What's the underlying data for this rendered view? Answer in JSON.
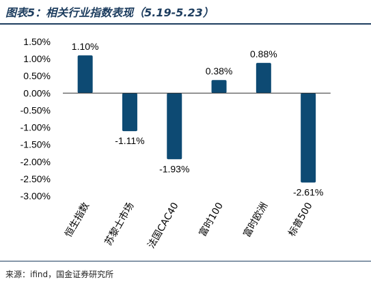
{
  "header": {
    "title": "图表5：相关行业指数表现（5.19-5.23）"
  },
  "footer": {
    "source": "来源：ifind，国金证券研究所"
  },
  "colors": {
    "bar": "#0d4a73",
    "rule": "#1c3c5e"
  },
  "chart_data": {
    "type": "bar",
    "categories": [
      "恒生指数",
      "苏黎士市场",
      "法国CAC40",
      "富时100",
      "富时欧洲",
      "标普500"
    ],
    "values": [
      1.1,
      -1.11,
      -1.93,
      0.38,
      0.88,
      -2.61
    ],
    "value_labels": [
      "1.10%",
      "-1.11%",
      "-1.93%",
      "0.38%",
      "0.88%",
      "-2.61%"
    ],
    "ylim": [
      -3.0,
      1.5
    ],
    "yticks": [
      1.5,
      1.0,
      0.5,
      0.0,
      -0.5,
      -1.0,
      -1.5,
      -2.0,
      -2.5,
      -3.0
    ],
    "ytick_labels": [
      "1.50%",
      "1.00%",
      "0.50%",
      "0.00%",
      "-0.50%",
      "-1.00%",
      "-1.50%",
      "-2.00%",
      "-2.50%",
      "-3.00%"
    ],
    "grid": false,
    "legend": false
  }
}
